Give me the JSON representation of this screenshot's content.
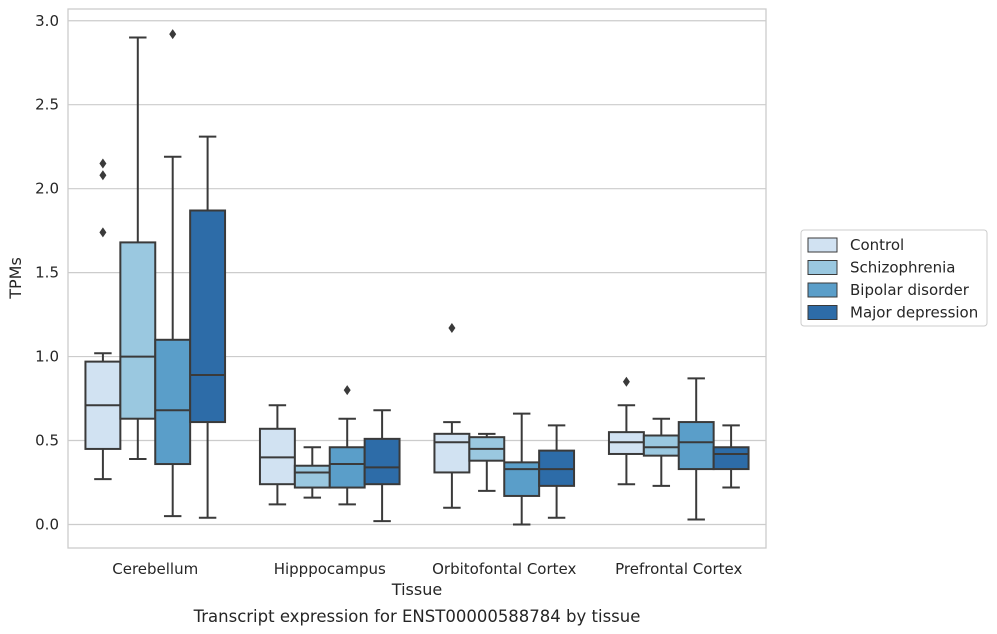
{
  "caption": "Transcript expression for ENST00000588784 by tissue",
  "chart_data": {
    "type": "box",
    "xlabel": "Tissue",
    "ylabel": "TPMs",
    "ylim": [
      -0.14,
      3.07
    ],
    "yticks": [
      "0.0",
      "0.5",
      "1.0",
      "1.5",
      "2.0",
      "2.5",
      "3.0"
    ],
    "grid": "horizontal",
    "legend_position": "right",
    "categories": [
      "Cerebellum",
      "Hipppocampus",
      "Orbitofontal Cortex",
      "Prefrontal Cortex"
    ],
    "series": [
      {
        "name": "Control",
        "color": "#d1e2f2",
        "boxes": [
          {
            "min": 0.27,
            "q1": 0.45,
            "median": 0.71,
            "q3": 0.97,
            "max": 1.02,
            "outliers": [
              1.74,
              2.08,
              2.15
            ]
          },
          {
            "min": 0.12,
            "q1": 0.24,
            "median": 0.4,
            "q3": 0.57,
            "max": 0.71,
            "outliers": []
          },
          {
            "min": 0.1,
            "q1": 0.31,
            "median": 0.49,
            "q3": 0.54,
            "max": 0.61,
            "outliers": [
              1.17
            ]
          },
          {
            "min": 0.24,
            "q1": 0.42,
            "median": 0.49,
            "q3": 0.55,
            "max": 0.71,
            "outliers": [
              0.85
            ]
          }
        ]
      },
      {
        "name": "Schizophrenia",
        "color": "#9ac8e0",
        "boxes": [
          {
            "min": 0.39,
            "q1": 0.63,
            "median": 1.0,
            "q3": 1.68,
            "max": 2.9,
            "outliers": []
          },
          {
            "min": 0.16,
            "q1": 0.22,
            "median": 0.31,
            "q3": 0.35,
            "max": 0.46,
            "outliers": []
          },
          {
            "min": 0.2,
            "q1": 0.38,
            "median": 0.45,
            "q3": 0.52,
            "max": 0.54,
            "outliers": []
          },
          {
            "min": 0.23,
            "q1": 0.41,
            "median": 0.46,
            "q3": 0.53,
            "max": 0.63,
            "outliers": []
          }
        ]
      },
      {
        "name": "Bipolar disorder",
        "color": "#5a9ec9",
        "boxes": [
          {
            "min": 0.05,
            "q1": 0.36,
            "median": 0.68,
            "q3": 1.1,
            "max": 2.19,
            "outliers": [
              2.92
            ]
          },
          {
            "min": 0.12,
            "q1": 0.22,
            "median": 0.36,
            "q3": 0.46,
            "max": 0.63,
            "outliers": [
              0.8
            ]
          },
          {
            "min": 0.0,
            "q1": 0.17,
            "median": 0.33,
            "q3": 0.37,
            "max": 0.66,
            "outliers": []
          },
          {
            "min": 0.03,
            "q1": 0.33,
            "median": 0.49,
            "q3": 0.61,
            "max": 0.87,
            "outliers": []
          }
        ]
      },
      {
        "name": "Major depression",
        "color": "#2d6ca8",
        "boxes": [
          {
            "min": 0.04,
            "q1": 0.61,
            "median": 0.89,
            "q3": 1.87,
            "max": 2.31,
            "outliers": []
          },
          {
            "min": 0.02,
            "q1": 0.24,
            "median": 0.34,
            "q3": 0.51,
            "max": 0.68,
            "outliers": []
          },
          {
            "min": 0.04,
            "q1": 0.23,
            "median": 0.33,
            "q3": 0.44,
            "max": 0.59,
            "outliers": []
          },
          {
            "min": 0.22,
            "q1": 0.33,
            "median": 0.42,
            "q3": 0.46,
            "max": 0.59,
            "outliers": []
          }
        ]
      }
    ]
  }
}
